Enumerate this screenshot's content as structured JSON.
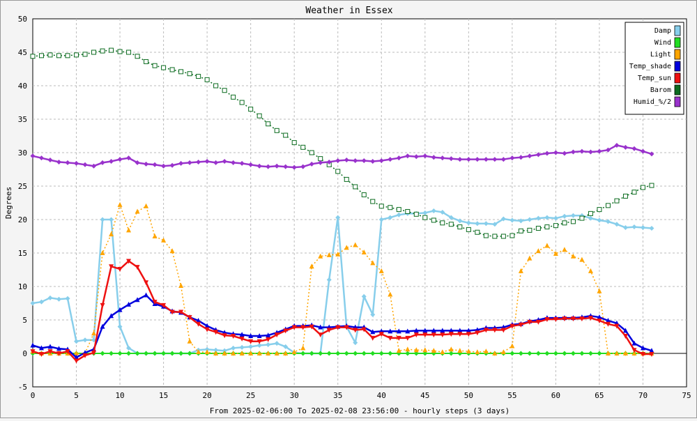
{
  "chart_data": {
    "type": "line",
    "title": "Weather in Essex",
    "xlabel": "From 2025-02-06:00 To 2025-02-08 23:56:00 - hourly steps (3 days)",
    "ylabel": "Degrees",
    "xlim": [
      0,
      75
    ],
    "ylim": [
      -5,
      50
    ],
    "x_ticks": [
      0,
      5,
      10,
      15,
      20,
      25,
      30,
      35,
      40,
      45,
      50,
      55,
      60,
      65,
      70,
      75
    ],
    "y_ticks": [
      -5,
      0,
      5,
      10,
      15,
      20,
      25,
      30,
      35,
      40,
      45,
      50
    ],
    "grid": true,
    "legend_position": "top-right",
    "series": [
      {
        "name": "Damp",
        "color": "#87ceeb",
        "values": [
          7.5,
          7.7,
          8.3,
          8.1,
          8.2,
          1.8,
          2.0,
          2.0,
          20.0,
          20.0,
          4.0,
          0.8,
          0.0,
          0.0,
          0.0,
          0.0,
          0.0,
          0.0,
          0.0,
          0.5,
          0.6,
          0.5,
          0.4,
          0.8,
          0.9,
          1.0,
          1.2,
          1.3,
          1.5,
          1.0,
          0.1,
          0.0,
          0.0,
          0.0,
          11.0,
          20.3,
          4.0,
          1.6,
          8.5,
          5.8,
          20.0,
          20.3,
          20.7,
          20.9,
          20.9,
          21.0,
          21.3,
          21.1,
          20.3,
          19.8,
          19.5,
          19.4,
          19.4,
          19.3,
          20.1,
          19.9,
          19.8,
          20.0,
          20.2,
          20.3,
          20.2,
          20.5,
          20.6,
          20.6,
          20.2,
          19.9,
          19.7,
          19.3,
          18.8,
          18.9,
          18.8,
          18.7
        ]
      },
      {
        "name": "Wind",
        "color": "#22dd22",
        "values": [
          0,
          0,
          0,
          0,
          0,
          0,
          0,
          0,
          0,
          0,
          0,
          0,
          0,
          0,
          0,
          0,
          0,
          0,
          0,
          0,
          0,
          0,
          0,
          0,
          0,
          0,
          0,
          0,
          0,
          0,
          0,
          0,
          0,
          0,
          0,
          0,
          0,
          0,
          0,
          0,
          0,
          0,
          0,
          0,
          0,
          0,
          0,
          0,
          0,
          0,
          0,
          0,
          0,
          0,
          0,
          0,
          0,
          0,
          0,
          0,
          0,
          0,
          0,
          0,
          0,
          0,
          0,
          0,
          0,
          0,
          0,
          0
        ]
      },
      {
        "name": "Light",
        "color": "#ffa500",
        "values": [
          0.3,
          0.0,
          0.0,
          0.0,
          0.0,
          0.0,
          0.0,
          3.0,
          15.0,
          17.8,
          22.2,
          18.4,
          21.2,
          22.0,
          17.5,
          16.9,
          15.3,
          10.1,
          1.8,
          0.2,
          0.2,
          0.0,
          0.0,
          0.0,
          0.0,
          0.0,
          0.0,
          0.0,
          0.0,
          0.0,
          0.2,
          0.8,
          13.0,
          14.5,
          14.7,
          14.8,
          15.8,
          16.2,
          15.1,
          13.5,
          12.3,
          8.8,
          0.4,
          0.6,
          0.5,
          0.5,
          0.4,
          0.2,
          0.6,
          0.4,
          0.3,
          0.2,
          0.3,
          0.0,
          0.2,
          1.1,
          12.3,
          14.2,
          15.3,
          16.1,
          14.9,
          15.5,
          14.5,
          14.0,
          12.3,
          9.3,
          0.0,
          0.0,
          0.0,
          0.0,
          0.0,
          0.0
        ]
      },
      {
        "name": "Temp_shade",
        "color": "#0000dd",
        "values": [
          1.2,
          0.8,
          1.0,
          0.7,
          0.6,
          -0.6,
          0.1,
          0.6,
          4.0,
          5.6,
          6.5,
          7.3,
          8.0,
          8.7,
          7.4,
          7.0,
          6.3,
          6.1,
          5.4,
          4.9,
          4.1,
          3.5,
          3.1,
          2.9,
          2.8,
          2.6,
          2.6,
          2.7,
          3.1,
          3.6,
          4.1,
          4.1,
          4.2,
          3.9,
          3.9,
          4.0,
          4.1,
          3.9,
          3.9,
          3.2,
          3.3,
          3.3,
          3.3,
          3.3,
          3.4,
          3.4,
          3.4,
          3.4,
          3.4,
          3.4,
          3.4,
          3.5,
          3.8,
          3.8,
          3.9,
          4.3,
          4.4,
          4.8,
          5.0,
          5.3,
          5.3,
          5.3,
          5.3,
          5.4,
          5.6,
          5.4,
          4.9,
          4.5,
          3.4,
          1.5,
          0.8,
          0.4
        ]
      },
      {
        "name": "Temp_sun",
        "color": "#ee1111",
        "values": [
          0.3,
          -0.1,
          0.3,
          0.0,
          0.3,
          -1.1,
          -0.3,
          0.1,
          7.2,
          13.0,
          12.6,
          13.8,
          12.9,
          10.6,
          7.7,
          7.2,
          6.2,
          6.2,
          5.4,
          4.4,
          3.6,
          3.2,
          2.7,
          2.6,
          2.2,
          1.8,
          1.8,
          2.1,
          2.8,
          3.4,
          3.9,
          3.9,
          4.0,
          2.8,
          3.5,
          3.9,
          3.9,
          3.5,
          3.6,
          2.3,
          2.9,
          2.3,
          2.3,
          2.3,
          2.8,
          2.8,
          2.8,
          2.8,
          2.9,
          2.9,
          2.9,
          3.1,
          3.5,
          3.5,
          3.5,
          4.1,
          4.3,
          4.7,
          4.7,
          5.1,
          5.1,
          5.2,
          5.2,
          5.2,
          5.3,
          4.9,
          4.4,
          4.1,
          2.6,
          0.5,
          -0.1,
          -0.1
        ]
      },
      {
        "name": "Barom",
        "color": "#0b6b1f",
        "values": [
          44.4,
          44.5,
          44.6,
          44.5,
          44.5,
          44.6,
          44.7,
          45.0,
          45.2,
          45.3,
          45.1,
          45.0,
          44.4,
          43.6,
          43.0,
          42.7,
          42.4,
          42.1,
          41.8,
          41.4,
          40.9,
          40.0,
          39.3,
          38.3,
          37.5,
          36.5,
          35.5,
          34.3,
          33.3,
          32.6,
          31.5,
          30.8,
          30.0,
          29.1,
          28.2,
          27.2,
          26.0,
          24.9,
          23.7,
          22.7,
          22.0,
          21.8,
          21.5,
          21.2,
          20.8,
          20.3,
          19.9,
          19.5,
          19.3,
          18.9,
          18.5,
          18.1,
          17.6,
          17.5,
          17.5,
          17.6,
          18.3,
          18.4,
          18.7,
          18.9,
          19.1,
          19.5,
          19.7,
          20.2,
          20.9,
          21.5,
          22.1,
          22.8,
          23.5,
          24.1,
          24.8,
          25.1
        ]
      },
      {
        "name": "Humid_%/2",
        "color": "#9932cc",
        "values": [
          29.5,
          29.2,
          28.9,
          28.6,
          28.5,
          28.4,
          28.2,
          28.0,
          28.5,
          28.7,
          29.0,
          29.2,
          28.5,
          28.3,
          28.2,
          28.0,
          28.1,
          28.4,
          28.5,
          28.6,
          28.7,
          28.5,
          28.7,
          28.5,
          28.4,
          28.2,
          28.0,
          27.9,
          28.0,
          27.9,
          27.8,
          27.9,
          28.3,
          28.5,
          28.6,
          28.8,
          28.9,
          28.8,
          28.8,
          28.7,
          28.8,
          29.0,
          29.2,
          29.5,
          29.4,
          29.5,
          29.3,
          29.2,
          29.1,
          29.0,
          29.0,
          29.0,
          29.0,
          29.0,
          29.0,
          29.2,
          29.3,
          29.5,
          29.7,
          29.9,
          30.0,
          29.9,
          30.1,
          30.2,
          30.1,
          30.2,
          30.4,
          31.1,
          30.8,
          30.6,
          30.2,
          29.8
        ]
      }
    ]
  }
}
